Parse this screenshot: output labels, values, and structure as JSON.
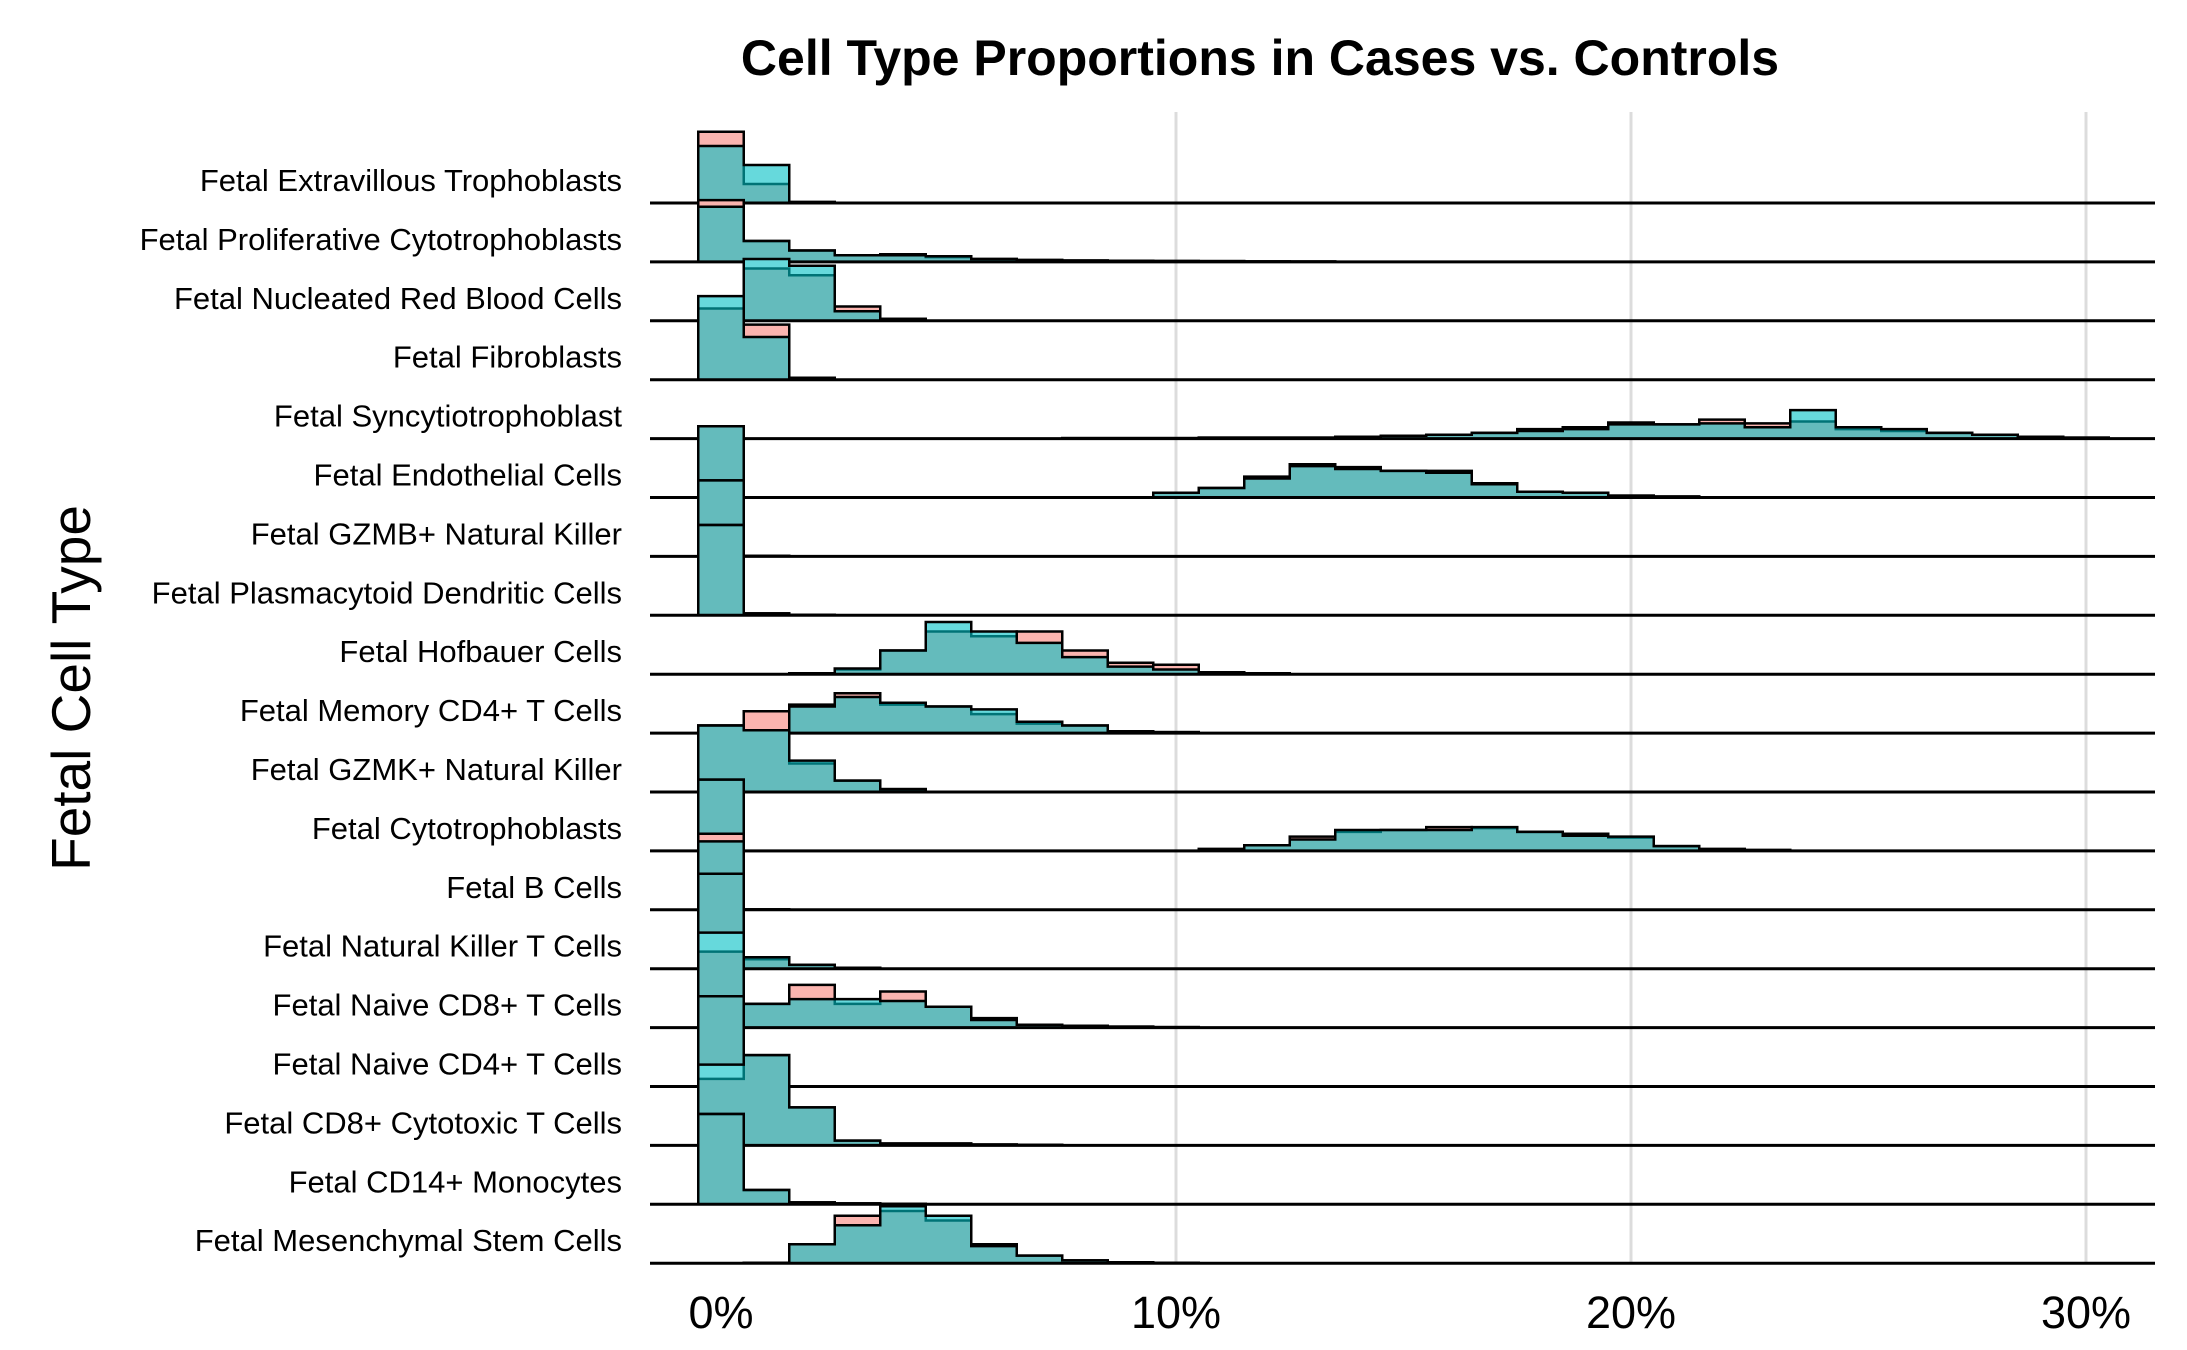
{
  "chart_data": {
    "type": "ridgeline-histogram",
    "title": "Cell Type Proportions in Cases vs. Controls",
    "xlabel": "",
    "ylabel": "Fetal Cell Type",
    "x_ticks": [
      "0%",
      "10%",
      "20%",
      "30%"
    ],
    "xlim": [
      -0.015,
      0.315
    ],
    "bin_width": 0.01,
    "grid": true,
    "colors": {
      "case": "#F8766D",
      "control": "#00BFC4",
      "overlap": "#5FB3AE"
    },
    "rows": [
      {
        "label": "Fetal Extravillous Trophoblasts",
        "bins": [
          0,
          0.01,
          0.02
        ],
        "case": [
          0.75,
          0.2,
          0.01
        ],
        "control": [
          0.6,
          0.4,
          0.01
        ]
      },
      {
        "label": "Fetal Proliferative Cytotrophoblasts",
        "bins": [
          0,
          0.01,
          0.02,
          0.03,
          0.04,
          0.05,
          0.06,
          0.07,
          0.08,
          0.09,
          0.1,
          0.11,
          0.12,
          0.13
        ],
        "case": [
          0.65,
          0.22,
          0.12,
          0.07,
          0.08,
          0.05,
          0.03,
          0.02,
          0.015,
          0.012,
          0.01,
          0.008,
          0.006,
          0.004
        ],
        "control": [
          0.58,
          0.22,
          0.12,
          0.07,
          0.07,
          0.06,
          0.03,
          0.02,
          0.015,
          0.012,
          0.01,
          0.008,
          0.006,
          0.004
        ]
      },
      {
        "label": "Fetal Nucleated Red Blood Cells",
        "bins": [
          0,
          0.01,
          0.02,
          0.03,
          0.04
        ],
        "case": [
          0.18,
          0.55,
          0.48,
          0.15,
          0.02
        ],
        "control": [
          0.15,
          0.65,
          0.58,
          0.1,
          0.02
        ]
      },
      {
        "label": "Fetal Fibroblasts",
        "bins": [
          0,
          0.01,
          0.02
        ],
        "case": [
          0.75,
          0.58,
          0.02
        ],
        "control": [
          0.88,
          0.45,
          0.02
        ]
      },
      {
        "label": "Fetal Syncytiotrophoblast",
        "bins": [
          0.08,
          0.09,
          0.1,
          0.11,
          0.12,
          0.13,
          0.14,
          0.15,
          0.16,
          0.17,
          0.18,
          0.19,
          0.2,
          0.21,
          0.22,
          0.23,
          0.24,
          0.25,
          0.26,
          0.27,
          0.28,
          0.29,
          0.3
        ],
        "case": [
          0.005,
          0.005,
          0.005,
          0.01,
          0.01,
          0.01,
          0.02,
          0.03,
          0.04,
          0.06,
          0.1,
          0.12,
          0.17,
          0.15,
          0.2,
          0.16,
          0.18,
          0.1,
          0.08,
          0.06,
          0.04,
          0.02,
          0.01
        ],
        "control": [
          0.005,
          0.005,
          0.005,
          0.01,
          0.01,
          0.01,
          0.02,
          0.03,
          0.04,
          0.06,
          0.08,
          0.1,
          0.15,
          0.15,
          0.16,
          0.12,
          0.3,
          0.12,
          0.1,
          0.06,
          0.04,
          0.02,
          0.01
        ]
      },
      {
        "label": "Fetal Endothelial Cells",
        "bins": [
          0,
          0.01,
          0.02,
          0.03,
          0.04,
          0.05,
          0.06,
          0.07,
          0.08,
          0.09,
          0.1,
          0.11,
          0.12,
          0.13,
          0.14,
          0.15,
          0.16,
          0.17,
          0.18,
          0.19,
          0.2,
          0.21
        ],
        "case": [
          0.75,
          0,
          0,
          0,
          0,
          0,
          0,
          0,
          0,
          0,
          0.05,
          0.1,
          0.22,
          0.35,
          0.32,
          0.28,
          0.28,
          0.15,
          0.06,
          0.05,
          0.02,
          0.01
        ],
        "control": [
          0.75,
          0,
          0,
          0,
          0,
          0,
          0,
          0,
          0,
          0,
          0.05,
          0.1,
          0.2,
          0.33,
          0.3,
          0.28,
          0.26,
          0.14,
          0.06,
          0.05,
          0.02,
          0.01
        ]
      },
      {
        "label": "Fetal GZMB+ Natural Killer",
        "bins": [
          0,
          0.01
        ],
        "case": [
          0.8,
          0.005
        ],
        "control": [
          0.8,
          0.005
        ]
      },
      {
        "label": "Fetal Plasmacytoid Dendritic Cells",
        "bins": [
          0,
          0.01,
          0.02
        ],
        "case": [
          0.95,
          0.02,
          0.005
        ],
        "control": [
          0.95,
          0.02,
          0.005
        ]
      },
      {
        "label": "Fetal Hofbauer Cells",
        "bins": [
          0.02,
          0.03,
          0.04,
          0.05,
          0.06,
          0.07,
          0.08,
          0.09,
          0.1,
          0.11,
          0.12
        ],
        "case": [
          0.01,
          0.05,
          0.25,
          0.45,
          0.4,
          0.45,
          0.25,
          0.12,
          0.1,
          0.02,
          0.01
        ],
        "control": [
          0.01,
          0.06,
          0.25,
          0.55,
          0.45,
          0.33,
          0.18,
          0.08,
          0.05,
          0.02,
          0.01
        ]
      },
      {
        "label": "Fetal Memory CD4+ T Cells",
        "bins": [
          0,
          0.01,
          0.02,
          0.03,
          0.04,
          0.05,
          0.06,
          0.07,
          0.08,
          0.09,
          0.1
        ],
        "case": [
          0.08,
          0.2,
          0.3,
          0.42,
          0.3,
          0.28,
          0.2,
          0.1,
          0.08,
          0.02,
          0.01
        ],
        "control": [
          0.06,
          0.15,
          0.28,
          0.38,
          0.32,
          0.28,
          0.25,
          0.12,
          0.08,
          0.02,
          0.01
        ]
      },
      {
        "label": "Fetal GZMK+ Natural Killer",
        "bins": [
          0,
          0.01,
          0.02,
          0.03,
          0.04
        ],
        "case": [
          0.7,
          0.85,
          0.3,
          0.12,
          0.03
        ],
        "control": [
          0.7,
          0.65,
          0.33,
          0.12,
          0.03
        ]
      },
      {
        "label": "Fetal Cytotrophoblasts",
        "bins": [
          0,
          0.01,
          0.02,
          0.03,
          0.04,
          0.05,
          0.06,
          0.07,
          0.08,
          0.09,
          0.1,
          0.11,
          0.12,
          0.13,
          0.14,
          0.15,
          0.16,
          0.17,
          0.18,
          0.19,
          0.2,
          0.21,
          0.22,
          0.23
        ],
        "case": [
          0.75,
          0,
          0,
          0,
          0,
          0,
          0,
          0,
          0,
          0,
          0,
          0.02,
          0.06,
          0.15,
          0.2,
          0.22,
          0.25,
          0.24,
          0.2,
          0.18,
          0.14,
          0.05,
          0.02,
          0.01
        ],
        "control": [
          0.75,
          0,
          0,
          0,
          0,
          0,
          0,
          0,
          0,
          0,
          0,
          0.02,
          0.06,
          0.12,
          0.22,
          0.22,
          0.22,
          0.25,
          0.2,
          0.16,
          0.15,
          0.05,
          0.02,
          0.01
        ]
      },
      {
        "label": "Fetal B Cells",
        "bins": [
          0,
          0.01
        ],
        "case": [
          0.8,
          0.005
        ],
        "control": [
          0.72,
          0.005
        ]
      },
      {
        "label": "Fetal Natural Killer T Cells",
        "bins": [
          0,
          0.01,
          0.02,
          0.03
        ],
        "case": [
          1.0,
          0.1,
          0.04,
          0.01
        ],
        "control": [
          1.0,
          0.12,
          0.04,
          0.01
        ]
      },
      {
        "label": "Fetal Naive CD8+ T Cells",
        "bins": [
          0,
          0.01,
          0.02,
          0.03,
          0.04,
          0.05,
          0.06,
          0.07,
          0.08,
          0.09,
          0.1
        ],
        "case": [
          0.8,
          0.25,
          0.45,
          0.25,
          0.38,
          0.22,
          0.1,
          0.03,
          0.02,
          0.01,
          0.005
        ],
        "control": [
          1.0,
          0.25,
          0.3,
          0.3,
          0.28,
          0.22,
          0.08,
          0.03,
          0.02,
          0.01,
          0.005
        ]
      },
      {
        "label": "Fetal Naive CD4+ T Cells",
        "bins": [
          0,
          0.01
        ],
        "case": [
          0.95,
          0.005
        ],
        "control": [
          0.95,
          0.005
        ]
      },
      {
        "label": "Fetal CD8+ Cytotoxic T Cells",
        "bins": [
          0,
          0.01,
          0.02,
          0.03,
          0.04,
          0.05,
          0.06,
          0.07
        ],
        "case": [
          0.7,
          0.95,
          0.4,
          0.05,
          0.02,
          0.02,
          0.01,
          0.005
        ],
        "control": [
          0.85,
          0.95,
          0.4,
          0.05,
          0.02,
          0.02,
          0.01,
          0.005
        ]
      },
      {
        "label": "Fetal CD14+ Monocytes",
        "bins": [
          0,
          0.01,
          0.02,
          0.03,
          0.04
        ],
        "case": [
          0.95,
          0.15,
          0.02,
          0.01,
          0.005
        ],
        "control": [
          0.95,
          0.15,
          0.02,
          0.01,
          0.005
        ]
      },
      {
        "label": "Fetal Mesenchymal Stem Cells",
        "bins": [
          0.01,
          0.02,
          0.03,
          0.04,
          0.05,
          0.06,
          0.07,
          0.08,
          0.09,
          0.1
        ],
        "case": [
          0.005,
          0.2,
          0.5,
          0.55,
          0.45,
          0.2,
          0.08,
          0.03,
          0.01,
          0.005
        ],
        "control": [
          0.005,
          0.2,
          0.4,
          0.6,
          0.5,
          0.18,
          0.08,
          0.03,
          0.01,
          0.005
        ]
      }
    ]
  }
}
